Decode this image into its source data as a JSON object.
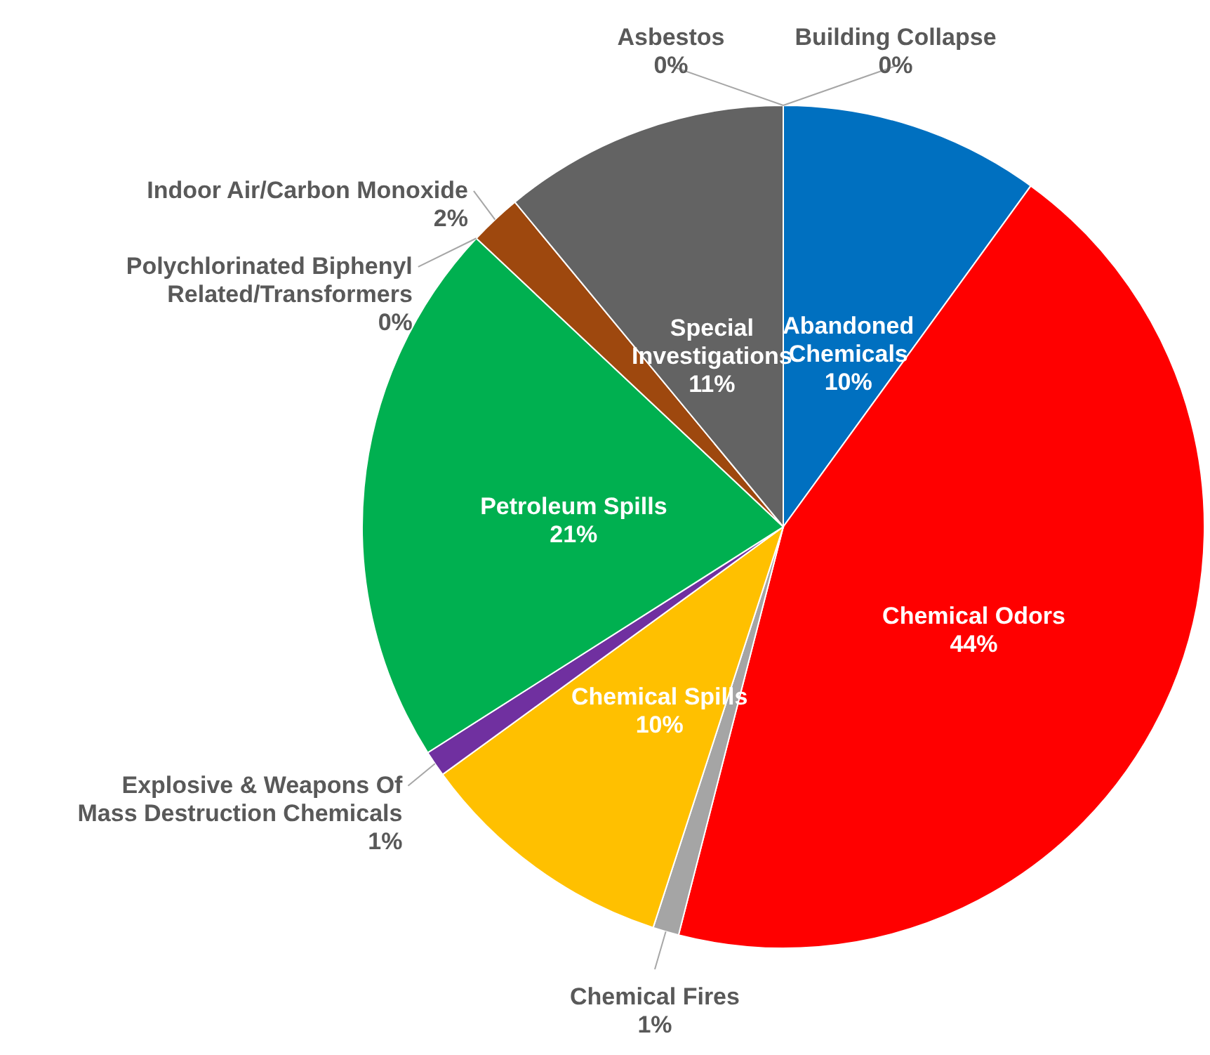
{
  "chart_data": {
    "type": "pie",
    "categories": [
      "Abandoned Chemicals",
      "Chemical Odors",
      "Chemical Fires",
      "Chemical Spills",
      "Explosive & Weapons Of Mass Destruction Chemicals",
      "Petroleum Spills",
      "Polychlorinated Biphenyl Related/Transformers",
      "Indoor Air/Carbon Monoxide",
      "Special Investigations",
      "Asbestos",
      "Building Collapse"
    ],
    "values": [
      10,
      44,
      1,
      10,
      1,
      21,
      0,
      2,
      11,
      0,
      0
    ],
    "value_labels": [
      "10%",
      "44%",
      "1%",
      "10%",
      "1%",
      "21%",
      "0%",
      "2%",
      "11%",
      "0%",
      "0%"
    ],
    "colors": [
      "#0070c0",
      "#ff0000",
      "#a5a5a5",
      "#ffc000",
      "#7030a0",
      "#00b050",
      "#264478",
      "#9e480e",
      "#636363",
      "#997300",
      "#255e91"
    ]
  }
}
